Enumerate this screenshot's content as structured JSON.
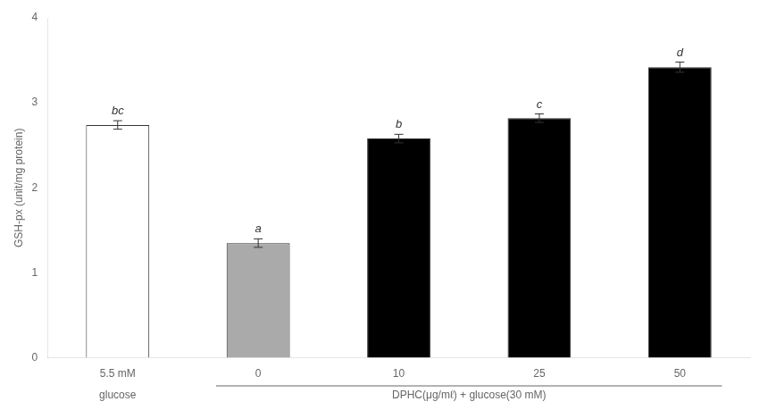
{
  "chart_data": {
    "type": "bar",
    "categories": [
      "5.5 mM",
      "0",
      "10",
      "25",
      "50"
    ],
    "values": [
      2.74,
      1.35,
      2.58,
      2.82,
      3.42
    ],
    "errors": [
      0.05,
      0.05,
      0.05,
      0.05,
      0.06
    ],
    "significance_labels": [
      "bc",
      "a",
      "b",
      "c",
      "d"
    ],
    "colors": [
      "white",
      "#aaaaaa",
      "black",
      "black",
      "black"
    ],
    "ylabel": "GSH-px (unit/mg protein)",
    "ylim": [
      0,
      4.0
    ],
    "yticks": [
      0,
      1,
      2,
      3,
      4
    ],
    "grid": false,
    "annotations": [
      {
        "text": "glucose",
        "span": [
          "5.5 mM",
          "5.5 mM"
        ]
      },
      {
        "text": "DPHC(μg/mℓ) + glucose(30 mM)",
        "span": [
          "0",
          "50"
        ]
      }
    ]
  }
}
